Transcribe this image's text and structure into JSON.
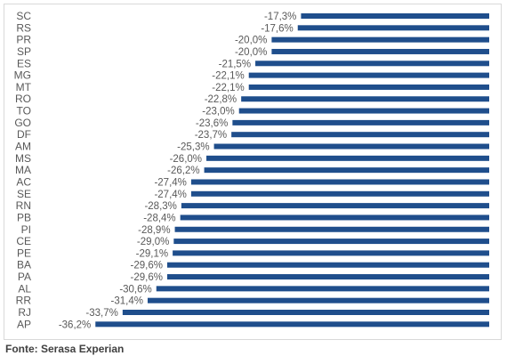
{
  "chart_data": {
    "type": "bar",
    "orientation": "horizontal",
    "categories": [
      "SC",
      "RS",
      "PR",
      "SP",
      "ES",
      "MG",
      "MT",
      "RO",
      "TO",
      "GO",
      "DF",
      "AM",
      "MS",
      "MA",
      "AC",
      "SE",
      "RN",
      "PB",
      "PI",
      "CE",
      "PE",
      "BA",
      "PA",
      "AL",
      "RR",
      "RJ",
      "AP"
    ],
    "values": [
      -17.3,
      -17.6,
      -20.0,
      -20.0,
      -21.5,
      -22.1,
      -22.1,
      -22.8,
      -23.0,
      -23.6,
      -23.7,
      -25.3,
      -26.0,
      -26.2,
      -27.4,
      -27.4,
      -28.3,
      -28.4,
      -28.9,
      -29.0,
      -29.1,
      -29.6,
      -29.6,
      -30.6,
      -31.4,
      -33.7,
      -36.2
    ],
    "value_labels": [
      "-17,3%",
      "-17,6%",
      "-20,0%",
      "-20,0%",
      "-21,5%",
      "-22,1%",
      "-22,1%",
      "-22,8%",
      "-23,0%",
      "-23,6%",
      "-23,7%",
      "-25,3%",
      "-26,0%",
      "-26,2%",
      "-27,4%",
      "-27,4%",
      "-28,3%",
      "-28,4%",
      "-28,9%",
      "-29,0%",
      "-29,1%",
      "-29,6%",
      "-29,6%",
      "-30,6%",
      "-31,4%",
      "-33,7%",
      "-36,2%"
    ],
    "bar_color": "#1f4e8c",
    "grid": false,
    "legend": "none"
  },
  "source": "Fonte: Serasa Experian"
}
